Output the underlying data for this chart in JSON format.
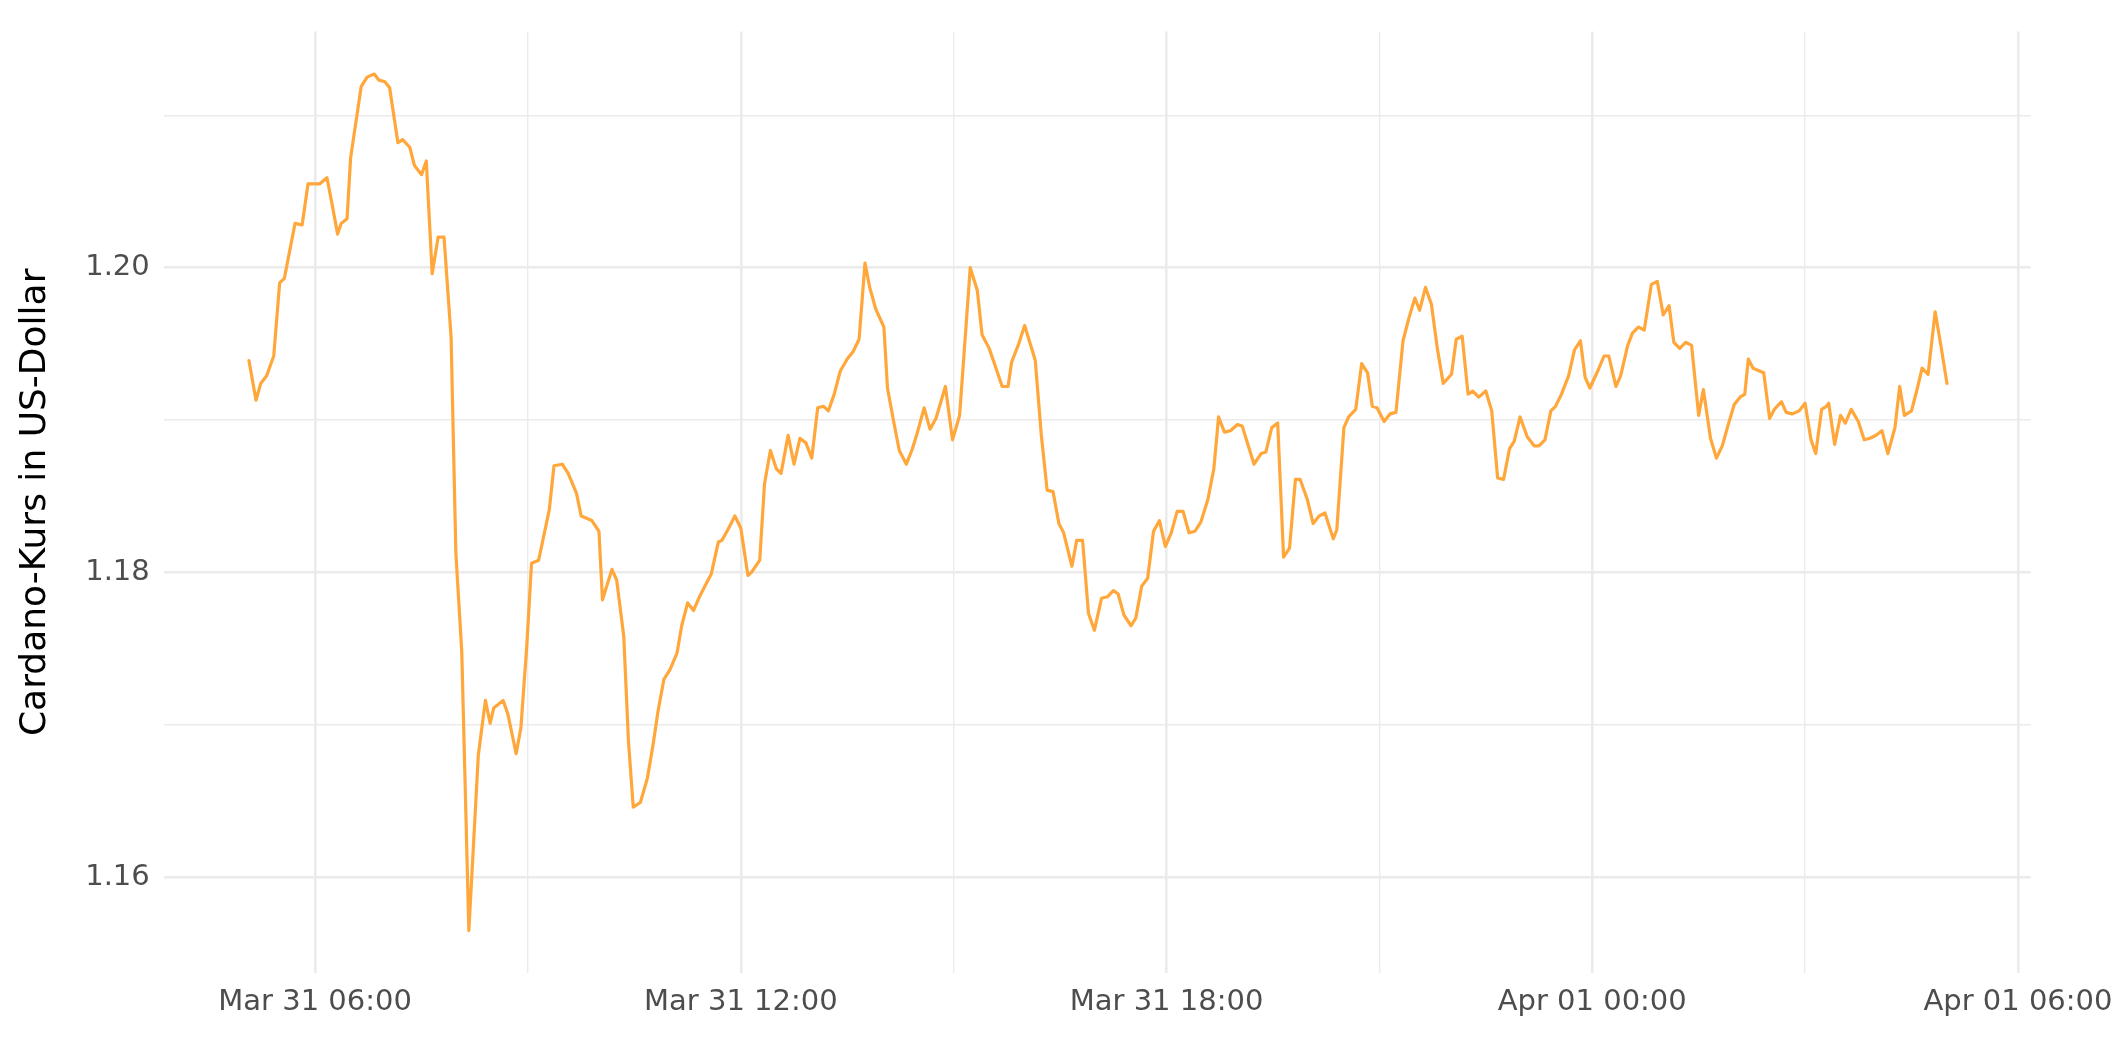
{
  "chart_data": {
    "type": "line",
    "ylabel": "Cardano-Kurs in US-Dollar",
    "grid": true,
    "legend": false,
    "xlim": [
      "--03-31T03:52",
      "--04-01T06:11"
    ],
    "ylim": [
      1.1537,
      1.2155
    ],
    "xticks": [
      {
        "value": "--03-31T06:00",
        "label": "Mar 31 06:00"
      },
      {
        "value": "--03-31T09:00",
        "label": null
      },
      {
        "value": "--03-31T12:00",
        "label": "Mar 31 12:00"
      },
      {
        "value": "--03-31T15:00",
        "label": null
      },
      {
        "value": "--03-31T18:00",
        "label": "Mar 31 18:00"
      },
      {
        "value": "--03-31T21:00",
        "label": null
      },
      {
        "value": "--04-01T00:00",
        "label": "Apr 01 00:00"
      },
      {
        "value": "--04-01T03:00",
        "label": null
      },
      {
        "value": "--04-01T06:00",
        "label": "Apr 01 06:00"
      }
    ],
    "yticks": [
      {
        "value": 1.16,
        "label": "1.16"
      },
      {
        "value": 1.17,
        "label": null
      },
      {
        "value": 1.18,
        "label": "1.18"
      },
      {
        "value": 1.19,
        "label": null
      },
      {
        "value": 1.2,
        "label": "1.20"
      },
      {
        "value": 1.21,
        "label": null
      }
    ],
    "series": [
      {
        "color": "#ffa73a",
        "x": [
          "--03-31T05:04",
          "--03-31T05:10",
          "--03-31T05:14",
          "--03-31T05:19",
          "--03-31T05:25",
          "--03-31T05:30",
          "--03-31T05:34",
          "--03-31T05:43",
          "--03-31T05:49",
          "--03-31T05:54",
          "--03-31T06:01",
          "--03-31T06:04",
          "--03-31T06:10",
          "--03-31T06:14",
          "--03-31T06:19",
          "--03-31T06:22",
          "--03-31T06:27",
          "--03-31T06:30",
          "--03-31T06:39",
          "--03-31T06:44",
          "--03-31T06:50",
          "--03-31T06:54",
          "--03-31T06:59",
          "--03-31T07:03",
          "--03-31T07:10",
          "--03-31T07:14",
          "--03-31T07:20",
          "--03-31T07:24",
          "--03-31T07:30",
          "--03-31T07:34",
          "--03-31T07:39",
          "--03-31T07:44",
          "--03-31T07:49",
          "--03-31T07:55",
          "--03-31T07:59",
          "--03-31T08:04",
          "--03-31T08:10",
          "--03-31T08:18",
          "--03-31T08:24",
          "--03-31T08:28",
          "--03-31T08:31",
          "--03-31T08:39",
          "--03-31T08:43",
          "--03-31T08:50",
          "--03-31T08:54",
          "--03-31T08:59",
          "--03-31T09:03",
          "--03-31T09:09",
          "--03-31T09:18",
          "--03-31T09:22",
          "--03-31T09:29",
          "--03-31T09:34",
          "--03-31T09:41",
          "--03-31T09:45",
          "--03-31T09:54",
          "--03-31T10:00",
          "--03-31T10:03",
          "--03-31T10:11",
          "--03-31T10:15",
          "--03-31T10:21",
          "--03-31T10:25",
          "--03-31T10:29",
          "--03-31T10:35",
          "--03-31T10:41",
          "--03-31T10:46",
          "--03-31T10:50",
          "--03-31T10:55",
          "--03-31T11:00",
          "--03-31T11:06",
          "--03-31T11:10",
          "--03-31T11:15",
          "--03-31T11:20",
          "--03-31T11:25",
          "--03-31T11:31",
          "--03-31T11:35",
          "--03-31T11:41",
          "--03-31T11:44",
          "--03-31T11:49",
          "--03-31T11:55",
          "--03-31T12:00",
          "--03-31T12:06",
          "--03-31T12:09",
          "--03-31T12:16",
          "--03-31T12:20",
          "--03-31T12:25",
          "--03-31T12:30",
          "--03-31T12:34",
          "--03-31T12:40",
          "--03-31T12:45",
          "--03-31T12:50",
          "--03-31T12:55",
          "--03-31T13:00",
          "--03-31T13:05",
          "--03-31T13:10",
          "--03-31T13:14",
          "--03-31T13:19",
          "--03-31T13:24",
          "--03-31T13:30",
          "--03-31T13:35",
          "--03-31T13:40",
          "--03-31T13:45",
          "--03-31T13:49",
          "--03-31T13:54",
          "--03-31T14:01",
          "--03-31T14:04",
          "--03-31T14:09",
          "--03-31T14:14",
          "--03-31T14:20",
          "--03-31T14:25",
          "--03-31T14:29",
          "--03-31T14:35",
          "--03-31T14:40",
          "--03-31T14:45",
          "--03-31T14:53",
          "--03-31T14:59",
          "--03-31T15:05",
          "--03-31T15:14",
          "--03-31T15:20",
          "--03-31T15:24",
          "--03-31T15:30",
          "--03-31T15:34",
          "--03-31T15:41",
          "--03-31T15:46",
          "--03-31T15:49",
          "--03-31T15:55",
          "--03-31T16:00",
          "--03-31T16:09",
          "--03-31T16:14",
          "--03-31T16:19",
          "--03-31T16:24",
          "--03-31T16:29",
          "--03-31T16:33",
          "--03-31T16:40",
          "--03-31T16:44",
          "--03-31T16:49",
          "--03-31T16:54",
          "--03-31T16:59",
          "--03-31T17:05",
          "--03-31T17:10",
          "--03-31T17:15",
          "--03-31T17:19",
          "--03-31T17:24",
          "--03-31T17:30",
          "--03-31T17:34",
          "--03-31T17:39",
          "--03-31T17:44",
          "--03-31T17:49",
          "--03-31T17:54",
          "--03-31T17:59",
          "--03-31T18:04",
          "--03-31T18:09",
          "--03-31T18:14",
          "--03-31T18:19",
          "--03-31T18:24",
          "--03-31T18:29",
          "--03-31T18:35",
          "--03-31T18:40",
          "--03-31T18:44",
          "--03-31T18:49",
          "--03-31T18:54",
          "--03-31T19:00",
          "--03-31T19:04",
          "--03-31T19:14",
          "--03-31T19:20",
          "--03-31T19:24",
          "--03-31T19:29",
          "--03-31T19:34",
          "--03-31T19:39",
          "--03-31T19:44",
          "--03-31T19:49",
          "--03-31T19:53",
          "--03-31T19:59",
          "--03-31T20:04",
          "--03-31T20:09",
          "--03-31T20:14",
          "--03-31T20:21",
          "--03-31T20:24",
          "--03-31T20:30",
          "--03-31T20:34",
          "--03-31T20:40",
          "--03-31T20:45",
          "--03-31T20:50",
          "--03-31T20:54",
          "--03-31T20:58",
          "--03-31T21:04",
          "--03-31T21:09",
          "--03-31T21:14",
          "--03-31T21:20",
          "--03-31T21:25",
          "--03-31T21:30",
          "--03-31T21:34",
          "--03-31T21:39",
          "--03-31T21:44",
          "--03-31T21:49",
          "--03-31T21:54",
          "--03-31T22:01",
          "--03-31T22:05",
          "--03-31T22:10",
          "--03-31T22:15",
          "--03-31T22:19",
          "--03-31T22:24",
          "--03-31T22:30",
          "--03-31T22:35",
          "--03-31T22:40",
          "--03-31T22:45",
          "--03-31T22:50",
          "--03-31T22:54",
          "--03-31T22:59",
          "--03-31T23:05",
          "--03-31T23:11",
          "--03-31T23:15",
          "--03-31T23:20",
          "--03-31T23:25",
          "--03-31T23:29",
          "--03-31T23:34",
          "--03-31T23:40",
          "--03-31T23:45",
          "--03-31T23:50",
          "--03-31T23:54",
          "--03-31T23:58",
          "--04-01T00:04",
          "--04-01T00:10",
          "--04-01T00:14",
          "--04-01T00:20",
          "--04-01T00:24",
          "--04-01T00:30",
          "--04-01T00:34",
          "--04-01T00:39",
          "--04-01T00:44",
          "--04-01T00:50",
          "--04-01T00:55",
          "--04-01T01:00",
          "--04-01T01:05",
          "--04-01T01:09",
          "--04-01T01:14",
          "--04-01T01:19",
          "--04-01T01:24",
          "--04-01T01:30",
          "--04-01T01:34",
          "--04-01T01:40",
          "--04-01T01:45",
          "--04-01T01:50",
          "--04-01T01:55",
          "--04-01T02:00",
          "--04-01T02:05",
          "--04-01T02:09",
          "--04-01T02:12",
          "--04-01T02:16",
          "--04-01T02:25",
          "--04-01T02:30",
          "--04-01T02:34",
          "--04-01T02:40",
          "--04-01T02:44",
          "--04-01T02:49",
          "--04-01T02:55",
          "--04-01T03:00",
          "--04-01T03:05",
          "--04-01T03:09",
          "--04-01T03:14",
          "--04-01T03:18",
          "--04-01T03:20",
          "--04-01T03:25",
          "--04-01T03:30",
          "--04-01T03:34",
          "--04-01T03:39",
          "--04-01T03:45",
          "--04-01T03:50",
          "--04-01T03:55",
          "--04-01T04:00",
          "--04-01T04:05",
          "--04-01T04:10",
          "--04-01T04:16",
          "--04-01T04:20",
          "--04-01T04:24",
          "--04-01T04:30",
          "--04-01T04:35",
          "--04-01T04:39",
          "--04-01T04:44",
          "--04-01T04:50",
          "--04-01T04:55",
          "--04-01T05:00"
        ],
        "values": [
          1.1939,
          1.1913,
          1.1924,
          1.1929,
          1.1942,
          1.199,
          1.1993,
          1.2029,
          1.2028,
          1.2055,
          1.2055,
          1.2055,
          1.2059,
          1.2043,
          1.2022,
          1.2029,
          1.2032,
          1.2072,
          1.2119,
          1.2125,
          1.2127,
          1.2123,
          1.2122,
          1.2118,
          1.2082,
          1.2084,
          1.2079,
          1.2067,
          1.2061,
          1.207,
          1.1996,
          1.202,
          1.202,
          1.1954,
          1.1813,
          1.1748,
          1.1565,
          1.168,
          1.1716,
          1.1701,
          1.1711,
          1.1716,
          1.1707,
          1.1681,
          1.1698,
          1.1752,
          1.1806,
          1.1808,
          1.1841,
          1.187,
          1.1871,
          1.1865,
          1.1852,
          1.1837,
          1.1834,
          1.1827,
          1.1782,
          1.1802,
          1.1795,
          1.1758,
          1.1689,
          1.1646,
          1.1649,
          1.1665,
          1.1688,
          1.1709,
          1.173,
          1.1736,
          1.1747,
          1.1765,
          1.178,
          1.1775,
          1.1784,
          1.1793,
          1.1799,
          1.182,
          1.1821,
          1.1828,
          1.1837,
          1.1829,
          1.1798,
          1.18,
          1.1808,
          1.1858,
          1.188,
          1.1868,
          1.1865,
          1.189,
          1.1871,
          1.1888,
          1.1885,
          1.1875,
          1.1908,
          1.1909,
          1.1906,
          1.1917,
          1.1932,
          1.194,
          1.1945,
          1.1953,
          1.2003,
          1.1987,
          1.1973,
          1.1961,
          1.1921,
          1.19,
          1.188,
          1.1871,
          1.1881,
          1.1891,
          1.1908,
          1.1894,
          1.1901,
          1.1922,
          1.1887,
          1.1903,
          1.2,
          1.1985,
          1.1956,
          1.1947,
          1.1938,
          1.1922,
          1.1922,
          1.1938,
          1.195,
          1.1962,
          1.1939,
          1.1891,
          1.1854,
          1.1853,
          1.1832,
          1.1826,
          1.1804,
          1.1821,
          1.1821,
          1.1773,
          1.1762,
          1.1783,
          1.1784,
          1.1788,
          1.1786,
          1.1772,
          1.1765,
          1.177,
          1.1791,
          1.1796,
          1.1827,
          1.1834,
          1.1817,
          1.1826,
          1.184,
          1.184,
          1.1826,
          1.1827,
          1.1833,
          1.1848,
          1.1868,
          1.1902,
          1.1892,
          1.1893,
          1.1897,
          1.1896,
          1.1871,
          1.1878,
          1.1879,
          1.1895,
          1.1898,
          1.181,
          1.1816,
          1.1861,
          1.1861,
          1.1848,
          1.1832,
          1.1837,
          1.1839,
          1.1822,
          1.1828,
          1.1895,
          1.1902,
          1.1907,
          1.1937,
          1.1931,
          1.1909,
          1.1908,
          1.1899,
          1.1904,
          1.1905,
          1.1952,
          1.1967,
          1.198,
          1.1972,
          1.1987,
          1.1976,
          1.1947,
          1.1924,
          1.193,
          1.1953,
          1.1955,
          1.1917,
          1.1919,
          1.1915,
          1.1919,
          1.1906,
          1.1862,
          1.1861,
          1.1881,
          1.1886,
          1.1902,
          1.1889,
          1.1883,
          1.1883,
          1.1887,
          1.1906,
          1.1909,
          1.1917,
          1.1929,
          1.1946,
          1.1952,
          1.1928,
          1.1921,
          1.1931,
          1.1942,
          1.1942,
          1.1922,
          1.1929,
          1.1949,
          1.1957,
          1.1961,
          1.1959,
          1.1989,
          1.1991,
          1.1969,
          1.1975,
          1.1951,
          1.1947,
          1.1951,
          1.1949,
          1.1903,
          1.192,
          1.1888,
          1.1875,
          1.1883,
          1.1897,
          1.191,
          1.1915,
          1.1917,
          1.194,
          1.1934,
          1.1931,
          1.1901,
          1.1907,
          1.1912,
          1.1905,
          1.1904,
          1.1906,
          1.1911,
          1.1887,
          1.1878,
          1.1907,
          1.1909,
          1.1911,
          1.1884,
          1.1903,
          1.1898,
          1.1907,
          1.1899,
          1.1887,
          1.1888,
          1.189,
          1.1893,
          1.1878,
          1.1895,
          1.1922,
          1.1903,
          1.1906,
          1.1921,
          1.1934,
          1.193,
          1.1971,
          1.1948,
          1.1924
        ]
      }
    ]
  }
}
